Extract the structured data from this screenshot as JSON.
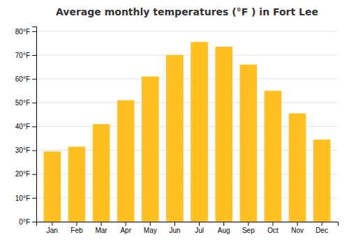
{
  "chart_data": {
    "type": "bar",
    "title": "Average monthly temperatures (°F ) in Fort Lee",
    "categories": [
      "Jan",
      "Feb",
      "Mar",
      "Apr",
      "May",
      "Jun",
      "Jul",
      "Aug",
      "Sep",
      "Oct",
      "Nov",
      "Dec"
    ],
    "values": [
      29.5,
      31.5,
      41.0,
      51.0,
      61.0,
      70.0,
      75.5,
      73.5,
      66.0,
      55.0,
      45.5,
      34.5
    ],
    "color": "#FFC020",
    "ylim": [
      0,
      82
    ],
    "yticks": [
      {
        "value": 0,
        "label": "0°F"
      },
      {
        "value": 10,
        "label": "10°F"
      },
      {
        "value": 20,
        "label": "20°F"
      },
      {
        "value": 30,
        "label": "30°F"
      },
      {
        "value": 40,
        "label": "40°F"
      },
      {
        "value": 50,
        "label": "50°F"
      },
      {
        "value": 60,
        "label": "60°F"
      },
      {
        "value": 70,
        "label": "70°F"
      },
      {
        "value": 80,
        "label": "80°F"
      }
    ],
    "grid": true
  }
}
